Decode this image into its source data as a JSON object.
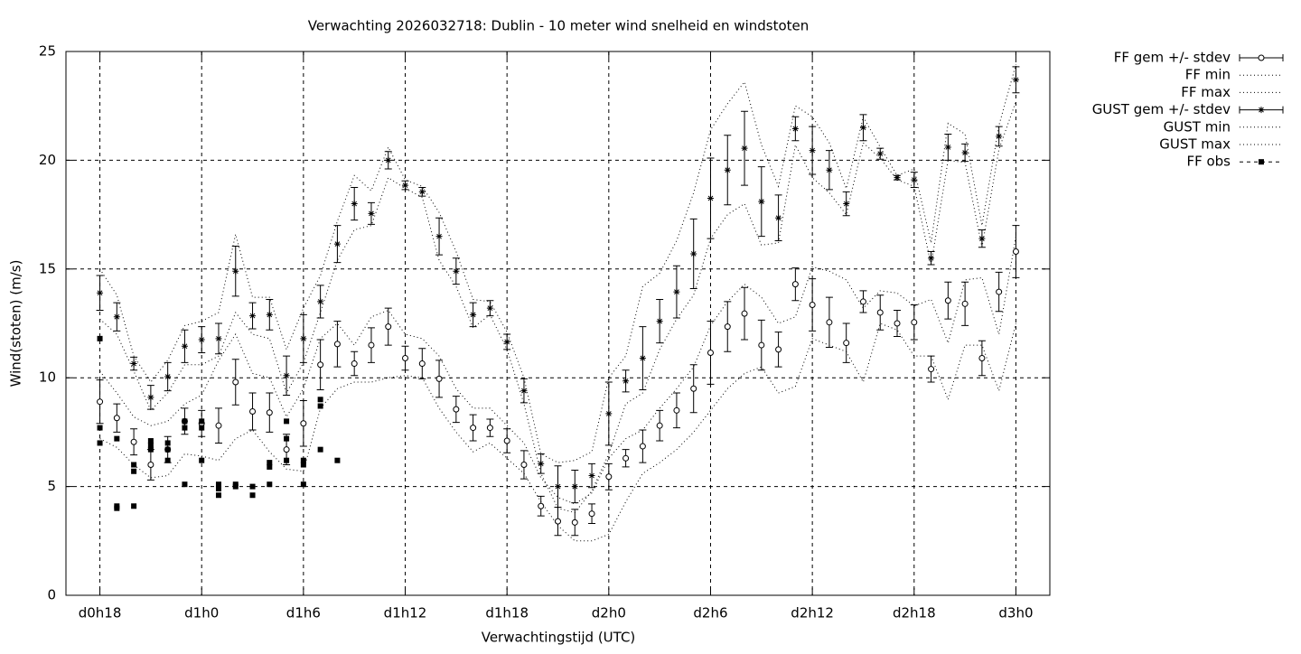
{
  "chart_data": {
    "type": "errorbar",
    "title": "Verwachting 2026032718: Dublin - 10 meter wind snelheid en windstoten",
    "xlabel": "Verwachtingstijd (UTC)",
    "ylabel": "Wind(stoten) (m/s)",
    "xlim": [
      16,
      74
    ],
    "ylim": [
      0,
      25
    ],
    "xticks": [
      {
        "value": 18,
        "label": "d0h18"
      },
      {
        "value": 24,
        "label": "d1h0"
      },
      {
        "value": 30,
        "label": "d1h6"
      },
      {
        "value": 36,
        "label": "d1h12"
      },
      {
        "value": 42,
        "label": "d1h18"
      },
      {
        "value": 48,
        "label": "d2h0"
      },
      {
        "value": 54,
        "label": "d2h6"
      },
      {
        "value": 60,
        "label": "d2h12"
      },
      {
        "value": 66,
        "label": "d2h18"
      },
      {
        "value": 72,
        "label": "d3h0"
      }
    ],
    "yticks": [
      0,
      5,
      10,
      15,
      20,
      25
    ],
    "grid": true,
    "legend": "outside-right",
    "x": [
      18,
      19,
      20,
      21,
      22,
      23,
      24,
      25,
      26,
      27,
      28,
      29,
      30,
      31,
      32,
      33,
      34,
      35,
      36,
      37,
      38,
      39,
      40,
      41,
      42,
      43,
      44,
      45,
      46,
      47,
      48,
      49,
      50,
      51,
      52,
      53,
      54,
      55,
      56,
      57,
      58,
      59,
      60,
      61,
      62,
      63,
      64,
      65,
      66,
      67,
      68,
      69,
      70,
      71,
      72
    ],
    "series": [
      {
        "name": "FF gem +/- stdev",
        "style": "errorbar",
        "marker": "circle",
        "color": "#000000",
        "values": [
          8.9,
          8.15,
          7.05,
          6.0,
          6.7,
          8.0,
          7.9,
          7.8,
          9.8,
          8.45,
          8.4,
          6.7,
          7.9,
          10.6,
          11.55,
          10.65,
          11.5,
          12.35,
          10.9,
          10.65,
          9.95,
          8.55,
          7.7,
          7.7,
          7.1,
          6.0,
          4.1,
          3.4,
          3.35,
          3.75,
          5.45,
          6.3,
          6.85,
          7.8,
          8.5,
          9.5,
          11.15,
          12.35,
          12.95,
          11.5,
          11.3,
          14.3,
          13.35,
          12.55,
          11.6,
          13.5,
          13.0,
          12.5,
          12.55,
          10.4,
          13.55,
          13.4,
          10.9,
          13.95,
          15.8
        ],
        "stdev": [
          1.0,
          0.65,
          0.6,
          0.7,
          0.6,
          0.6,
          0.6,
          0.8,
          1.05,
          0.85,
          0.9,
          0.7,
          1.05,
          1.15,
          1.05,
          0.55,
          0.8,
          0.85,
          0.55,
          0.7,
          0.85,
          0.6,
          0.6,
          0.4,
          0.55,
          0.65,
          0.45,
          0.65,
          0.6,
          0.45,
          0.6,
          0.4,
          0.75,
          0.7,
          0.8,
          1.1,
          1.45,
          1.15,
          1.2,
          1.15,
          0.8,
          0.75,
          1.2,
          1.15,
          0.9,
          0.5,
          0.8,
          0.6,
          0.8,
          0.6,
          0.85,
          1.0,
          0.8,
          0.9,
          1.2
        ]
      },
      {
        "name": "FF min",
        "style": "dotted",
        "color": "#000000",
        "values": [
          7.2,
          6.8,
          6.0,
          5.4,
          5.5,
          6.5,
          6.4,
          6.2,
          7.2,
          7.6,
          6.6,
          5.8,
          5.7,
          8.6,
          9.5,
          9.8,
          9.8,
          10.0,
          10.1,
          10.0,
          8.6,
          7.5,
          6.6,
          7.0,
          6.3,
          5.6,
          4.3,
          3.2,
          2.5,
          2.5,
          2.8,
          4.3,
          5.6,
          6.1,
          6.7,
          7.5,
          8.5,
          9.5,
          10.2,
          10.5,
          9.3,
          9.6,
          11.8,
          11.5,
          11.2,
          9.8,
          12.5,
          12.2,
          11.0,
          11.0,
          9.0,
          11.5,
          11.5,
          9.4,
          12.5
        ]
      },
      {
        "name": "FF max",
        "style": "dotted",
        "color": "#000000",
        "values": [
          10.3,
          9.3,
          8.2,
          7.8,
          8.0,
          8.8,
          9.2,
          10.8,
          12.0,
          10.2,
          10.0,
          8.2,
          9.5,
          11.8,
          12.5,
          11.5,
          12.8,
          13.1,
          12.0,
          11.8,
          11.0,
          9.5,
          8.6,
          8.6,
          7.8,
          7.0,
          5.4,
          4.5,
          4.2,
          4.7,
          6.3,
          7.2,
          7.6,
          8.6,
          9.5,
          10.5,
          12.4,
          13.5,
          14.3,
          13.7,
          12.5,
          12.8,
          15.1,
          14.9,
          14.5,
          13.2,
          14.0,
          13.9,
          13.3,
          13.6,
          11.6,
          14.5,
          14.6,
          12.0,
          16.5
        ]
      },
      {
        "name": "GUST gem +/- stdev",
        "style": "errorbar",
        "marker": "star",
        "color": "#000000",
        "values": [
          13.9,
          12.8,
          10.65,
          9.1,
          10.05,
          11.45,
          11.75,
          11.8,
          14.9,
          12.85,
          12.9,
          10.1,
          11.8,
          13.5,
          16.15,
          18.0,
          17.55,
          20.0,
          18.85,
          18.55,
          16.5,
          14.9,
          12.9,
          13.2,
          11.65,
          9.4,
          6.05,
          5.0,
          5.0,
          5.5,
          8.35,
          9.85,
          10.9,
          12.6,
          13.95,
          15.7,
          18.25,
          19.55,
          20.55,
          18.1,
          17.35,
          21.45,
          20.45,
          19.55,
          18.0,
          21.5,
          20.3,
          19.2,
          19.1,
          15.5,
          20.6,
          20.35,
          16.4,
          21.1,
          23.7
        ],
        "stdev": [
          0.8,
          0.65,
          0.3,
          0.55,
          0.65,
          0.75,
          0.6,
          0.7,
          1.15,
          0.6,
          0.7,
          0.9,
          1.1,
          0.75,
          0.85,
          0.75,
          0.5,
          0.4,
          0.2,
          0.2,
          0.85,
          0.6,
          0.55,
          0.35,
          0.35,
          0.55,
          0.45,
          0.95,
          0.75,
          0.55,
          1.45,
          0.5,
          1.45,
          1.0,
          1.2,
          1.6,
          1.85,
          1.6,
          1.7,
          1.6,
          1.05,
          0.55,
          1.1,
          0.9,
          0.55,
          0.6,
          0.25,
          0.1,
          0.35,
          0.3,
          0.6,
          0.4,
          0.4,
          0.45,
          0.6
        ]
      },
      {
        "name": "GUST min",
        "style": "dotted",
        "color": "#000000",
        "values": [
          12.7,
          12.0,
          10.3,
          8.5,
          9.3,
          10.6,
          10.6,
          11.0,
          13.0,
          12.0,
          11.8,
          9.3,
          10.7,
          13.0,
          15.4,
          16.8,
          17.0,
          19.2,
          18.7,
          18.3,
          15.4,
          14.2,
          12.3,
          12.9,
          11.3,
          8.8,
          5.6,
          4.0,
          3.8,
          4.8,
          6.5,
          8.8,
          9.3,
          11.3,
          12.7,
          13.8,
          16.4,
          17.5,
          18.0,
          16.1,
          16.2,
          20.7,
          19.2,
          18.5,
          17.5,
          20.8,
          20.1,
          19.1,
          18.8,
          15.2,
          20.0,
          19.9,
          16.0,
          20.5,
          22.7
        ]
      },
      {
        "name": "GUST max",
        "style": "dotted",
        "color": "#000000",
        "values": [
          15.0,
          13.8,
          11.0,
          9.8,
          10.8,
          12.4,
          12.6,
          13.0,
          16.6,
          13.7,
          13.7,
          11.3,
          13.2,
          14.7,
          17.2,
          19.3,
          18.6,
          20.6,
          19.1,
          18.8,
          17.6,
          15.8,
          13.6,
          13.5,
          12.1,
          10.0,
          6.5,
          6.1,
          6.2,
          6.6,
          10.0,
          11.0,
          14.2,
          14.8,
          16.3,
          18.5,
          21.4,
          22.6,
          23.6,
          20.7,
          18.8,
          22.5,
          22.0,
          20.8,
          18.7,
          22.0,
          20.6,
          19.3,
          19.6,
          16.2,
          21.7,
          21.2,
          17.0,
          21.6,
          24.4
        ]
      },
      {
        "name": "FF obs",
        "style": "points",
        "marker": "square",
        "color": "#000000",
        "x": [
          18,
          18,
          18,
          19,
          19,
          19,
          20,
          20,
          20,
          21,
          21,
          21,
          22,
          22,
          22,
          23,
          23,
          23,
          24,
          24,
          24,
          25,
          25,
          25,
          26,
          26,
          27,
          27,
          28,
          28,
          28,
          29,
          29,
          29,
          30,
          30,
          30,
          31,
          31,
          31,
          32
        ],
        "values": [
          11.8,
          7.7,
          7.0,
          7.2,
          4.1,
          4.0,
          6.0,
          5.7,
          4.1,
          7.1,
          6.9,
          6.7,
          7.0,
          6.7,
          6.2,
          8.0,
          7.7,
          5.1,
          8.0,
          7.7,
          6.2,
          5.1,
          4.9,
          4.6,
          5.1,
          5.0,
          5.0,
          4.6,
          6.1,
          5.9,
          5.1,
          8.0,
          7.2,
          6.2,
          6.2,
          6.0,
          5.1,
          9.0,
          8.7,
          6.7,
          6.2
        ]
      }
    ]
  }
}
